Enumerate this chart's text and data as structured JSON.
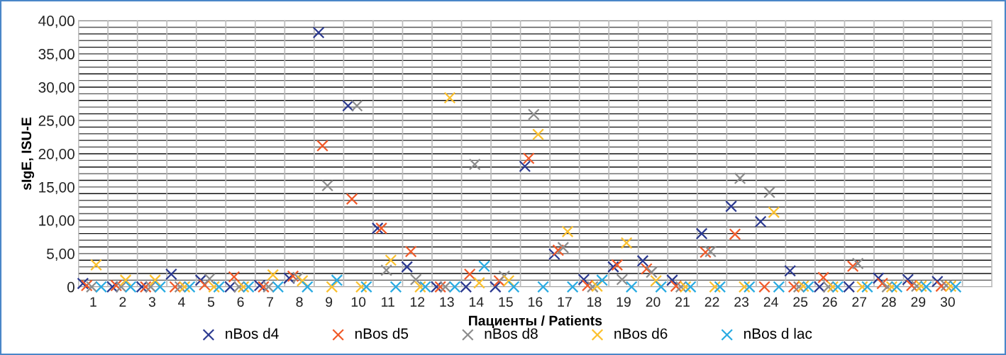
{
  "chart_data": {
    "type": "scatter",
    "ylabel": "sIgE, ISU-E",
    "xlabel": "Пациенты / Patients",
    "xlim": [
      0.5,
      31.5
    ],
    "xticks": [
      1,
      2,
      3,
      4,
      5,
      6,
      7,
      8,
      9,
      10,
      11,
      12,
      13,
      14,
      15,
      16,
      17,
      18,
      19,
      20,
      21,
      22,
      23,
      24,
      25,
      26,
      27,
      28,
      29,
      30
    ],
    "ylim": [
      0,
      40
    ],
    "yticks": [
      0,
      {
        "value": 5,
        "label": "5,00"
      },
      {
        "value": 10,
        "label": "10,00"
      },
      {
        "value": 15,
        "label": "15,00"
      },
      {
        "value": 20,
        "label": "20,00"
      },
      {
        "value": 25,
        "label": "25,00"
      },
      {
        "value": 30,
        "label": "30,00"
      },
      {
        "value": 35,
        "label": "35,00"
      },
      {
        "value": 40,
        "label": "40,00"
      }
    ],
    "grid": true,
    "legend": "bottom",
    "marker": "cross",
    "series": [
      {
        "name": "nBos d4",
        "color": "#2b3990",
        "x": [
          0.65,
          1.65,
          2.65,
          3.65,
          4.65,
          5.65,
          6.65,
          7.65,
          8.65,
          9.65,
          10.65,
          11.65,
          12.65,
          13.65,
          14.65,
          15.65,
          16.65,
          17.65,
          18.65,
          19.65,
          20.65,
          21.65,
          22.65,
          23.65,
          24.65,
          25.65,
          26.65,
          27.65,
          28.65,
          29.65
        ],
        "values": [
          0.5,
          0,
          0,
          1.9,
          1.0,
          0,
          0.2,
          1.3,
          38.2,
          27.2,
          8.8,
          3.0,
          0,
          0,
          0,
          18.1,
          4.9,
          1.1,
          3.0,
          3.9,
          1.0,
          8.0,
          12.1,
          9.8,
          2.4,
          0,
          0,
          1.3,
          1.1,
          0.8
        ]
      },
      {
        "name": "nBos d5",
        "color": "#f15a29",
        "x": [
          0.78,
          1.78,
          2.78,
          3.78,
          4.78,
          5.78,
          6.78,
          7.78,
          8.78,
          9.78,
          10.78,
          11.78,
          12.78,
          13.78,
          14.78,
          15.78,
          16.78,
          17.78,
          18.78,
          19.78,
          20.78,
          21.78,
          22.78,
          23.78,
          24.78,
          25.78,
          26.78,
          27.78,
          28.78,
          29.78
        ],
        "values": [
          0.2,
          0.2,
          0,
          0,
          0.3,
          1.5,
          0,
          1.6,
          21.2,
          13.2,
          8.8,
          5.3,
          0,
          1.9,
          0.9,
          19.3,
          5.5,
          0.2,
          3.3,
          2.7,
          0.1,
          5.2,
          7.9,
          0,
          0,
          1.4,
          3.1,
          0.5,
          0.2,
          0.1
        ]
      },
      {
        "name": "nBos d8",
        "color": "#8c8c8c",
        "x": [
          0.95,
          1.95,
          2.95,
          3.95,
          4.95,
          5.95,
          6.95,
          7.95,
          8.95,
          9.95,
          10.95,
          11.95,
          12.95,
          13.95,
          14.95,
          15.95,
          16.95,
          17.95,
          18.95,
          19.95,
          20.95,
          21.95,
          22.95,
          23.95,
          24.95,
          25.95,
          26.95,
          27.95,
          28.95,
          29.95
        ],
        "values": [
          0,
          0,
          0,
          0,
          1.2,
          0,
          0,
          1.4,
          15.2,
          27.2,
          2.5,
          1.1,
          0,
          18.4,
          1.6,
          25.9,
          5.9,
          0,
          1.1,
          2.2,
          0,
          5.3,
          16.3,
          14.2,
          0,
          0,
          3.5,
          0,
          0.1,
          0.2
        ]
      },
      {
        "name": "nBos d6",
        "color": "#fbc02d",
        "x": [
          1.1,
          2.1,
          3.1,
          4.1,
          5.1,
          6.1,
          7.1,
          8.1,
          9.1,
          10.1,
          11.1,
          12.1,
          13.1,
          14.1,
          15.1,
          16.1,
          17.1,
          18.1,
          19.1,
          20.1,
          21.1,
          22.1,
          23.1,
          24.1,
          25.1,
          26.1,
          27.1,
          28.1,
          29.1,
          30.1
        ],
        "values": [
          3.3,
          1.0,
          1.0,
          0,
          0,
          0,
          1.8,
          0.9,
          0,
          0,
          4.0,
          0,
          28.4,
          0.6,
          0.9,
          22.9,
          8.3,
          0.1,
          6.6,
          0.9,
          0,
          0,
          0,
          11.2,
          0.1,
          0,
          0,
          0,
          0.1,
          0.1
        ]
      },
      {
        "name": "nBos d lac",
        "color": "#29abe2",
        "x": [
          1.27,
          2.27,
          3.27,
          4.27,
          5.27,
          6.27,
          7.27,
          8.27,
          9.27,
          10.27,
          11.27,
          12.27,
          13.27,
          14.27,
          15.27,
          16.27,
          17.27,
          18.27,
          19.27,
          20.27,
          21.27,
          22.27,
          23.27,
          24.27,
          25.27,
          26.27,
          27.27,
          28.27,
          29.27,
          30.27
        ],
        "values": [
          0,
          0,
          0,
          0,
          0,
          0,
          0,
          0,
          1.0,
          0,
          0,
          0,
          0,
          3.1,
          0,
          0,
          0,
          1.0,
          0,
          0,
          0,
          0,
          0,
          0,
          0,
          0,
          0,
          0,
          0,
          0
        ]
      }
    ]
  }
}
